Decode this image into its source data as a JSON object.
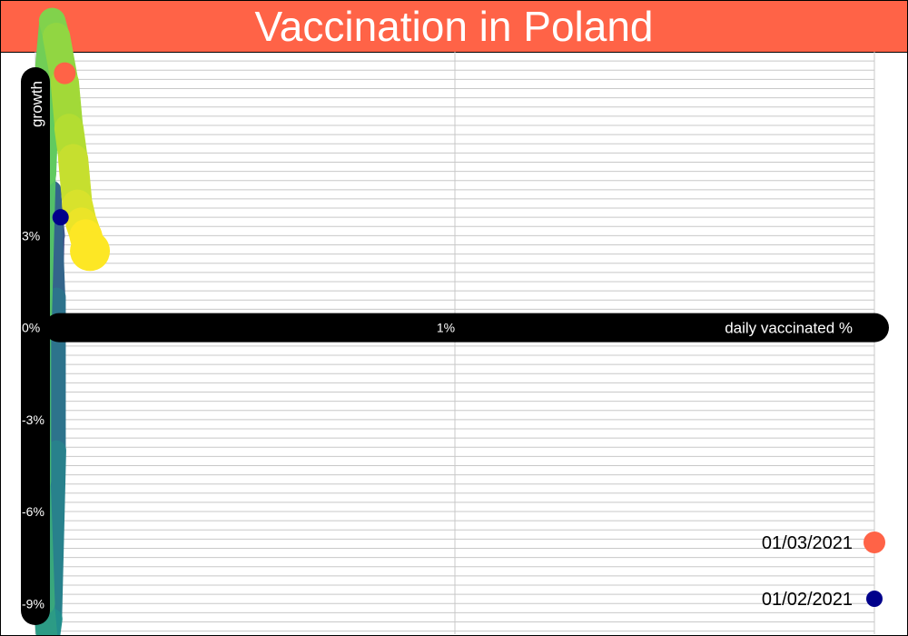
{
  "colors": {
    "accent": "#ff6347",
    "marker_end": "#ff6347",
    "marker_start": "#00008b",
    "axis_band": "#000000",
    "grid": "#c8c8c8",
    "path_palette": [
      "#440154",
      "#3b528b",
      "#21918c",
      "#5ec962",
      "#a8db34",
      "#fde725"
    ]
  },
  "chart_data": {
    "type": "scatter",
    "title": "Vaccination in Poland",
    "xlabel": "daily vaccinated %",
    "ylabel": "growth",
    "xlim": [
      0,
      2
    ],
    "ylim": [
      -10,
      9
    ],
    "x_ticks": [
      {
        "value": 1,
        "label": "1%"
      }
    ],
    "y_ticks": [
      {
        "value": 3,
        "label": "3%"
      },
      {
        "value": 0,
        "label": "0%"
      },
      {
        "value": -3,
        "label": "-3%"
      },
      {
        "value": -6,
        "label": "-6%"
      },
      {
        "value": -9,
        "label": "-9%"
      }
    ],
    "grid": true,
    "legend_position": "bottom-right",
    "legend": [
      {
        "label": "01/03/2021",
        "color": "#ff6347"
      },
      {
        "label": "01/02/2021",
        "color": "#00008b"
      }
    ],
    "series": [
      {
        "points": [
          {
            "x": 0.05,
            "y": 3.6
          },
          {
            "x": 0.04,
            "y": 1.5
          },
          {
            "x": 0.03,
            "y": -2.0
          },
          {
            "x": 0.03,
            "y": -5.5
          },
          {
            "x": 0.04,
            "y": -3.0
          },
          {
            "x": 0.05,
            "y": 3.0
          },
          {
            "x": 0.04,
            "y": 4.5
          },
          {
            "x": 0.05,
            "y": 1.0
          },
          {
            "x": 0.05,
            "y": -4.0
          },
          {
            "x": 0.04,
            "y": -9.5
          },
          {
            "x": 0.03,
            "y": -10.5
          },
          {
            "x": 0.02,
            "y": -9.0
          },
          {
            "x": 0.01,
            "y": -5.0
          },
          {
            "x": 0.01,
            "y": 0.0
          },
          {
            "x": 0.02,
            "y": 5.0
          },
          {
            "x": 0.03,
            "y": 8.5
          },
          {
            "x": 0.04,
            "y": 10.0
          },
          {
            "x": 0.05,
            "y": 9.5
          },
          {
            "x": 0.07,
            "y": 8.0
          },
          {
            "x": 0.08,
            "y": 6.5
          },
          {
            "x": 0.09,
            "y": 5.5
          },
          {
            "x": 0.1,
            "y": 4.0
          },
          {
            "x": 0.11,
            "y": 3.4
          },
          {
            "x": 0.12,
            "y": 3.0
          },
          {
            "x": 0.13,
            "y": 2.5
          }
        ]
      }
    ],
    "markers": [
      {
        "label": "01/02/2021",
        "x": 0.06,
        "y": 3.6
      },
      {
        "label": "01/03/2021",
        "x": 0.07,
        "y": 8.3
      }
    ]
  }
}
